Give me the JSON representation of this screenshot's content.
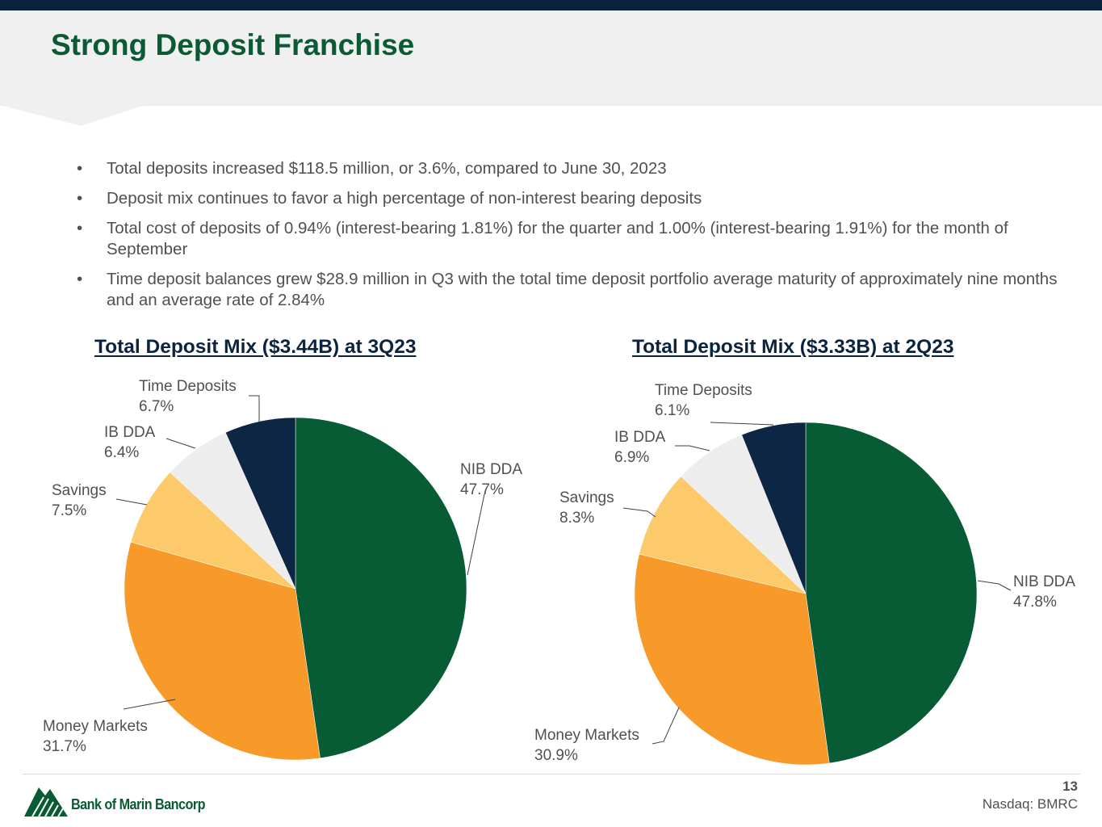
{
  "title": "Strong Deposit Franchise",
  "bullets": [
    "Total deposits increased $118.5 million, or 3.6%, compared to June 30, 2023",
    "Deposit mix continues to favor a high percentage of non-interest bearing deposits",
    "Total cost of deposits of 0.94% (interest-bearing 1.81%) for the quarter and 1.00% (interest-bearing 1.91%) for the month of September",
    "Time deposit balances grew $28.9 million in Q3 with the total time deposit portfolio average maturity of approximately nine months and an average rate of 2.84%"
  ],
  "bullet_symbol": "•",
  "chart_data": [
    {
      "type": "pie",
      "title": "Total Deposit Mix ($3.44B) at 3Q23",
      "slices": [
        {
          "label": "NIB DDA",
          "value": 47.7,
          "value_label": "47.7%",
          "color": "#075b35"
        },
        {
          "label": "Money Markets",
          "value": 31.7,
          "value_label": "31.7%",
          "color": "#f89a2a"
        },
        {
          "label": "Savings",
          "value": 7.5,
          "value_label": "7.5%",
          "color": "#fcca6a"
        },
        {
          "label": "IB DDA",
          "value": 6.4,
          "value_label": "6.4%",
          "color": "#ededed"
        },
        {
          "label": "Time Deposits",
          "value": 6.7,
          "value_label": "6.7%",
          "color": "#0c2644"
        }
      ]
    },
    {
      "type": "pie",
      "title": "Total Deposit Mix ($3.33B) at 2Q23",
      "slices": [
        {
          "label": "NIB DDA",
          "value": 47.8,
          "value_label": "47.8%",
          "color": "#075b35"
        },
        {
          "label": "Money Markets",
          "value": 30.9,
          "value_label": "30.9%",
          "color": "#f89a2a"
        },
        {
          "label": "Savings",
          "value": 8.3,
          "value_label": "8.3%",
          "color": "#fcca6a"
        },
        {
          "label": "IB DDA",
          "value": 6.9,
          "value_label": "6.9%",
          "color": "#ededed"
        },
        {
          "label": "Time Deposits",
          "value": 6.1,
          "value_label": "6.1%",
          "color": "#0c2644"
        }
      ]
    }
  ],
  "footer": {
    "company": "Bank of Marin Bancorp",
    "page_number": "13",
    "ticker": "Nasdaq: BMRC"
  }
}
